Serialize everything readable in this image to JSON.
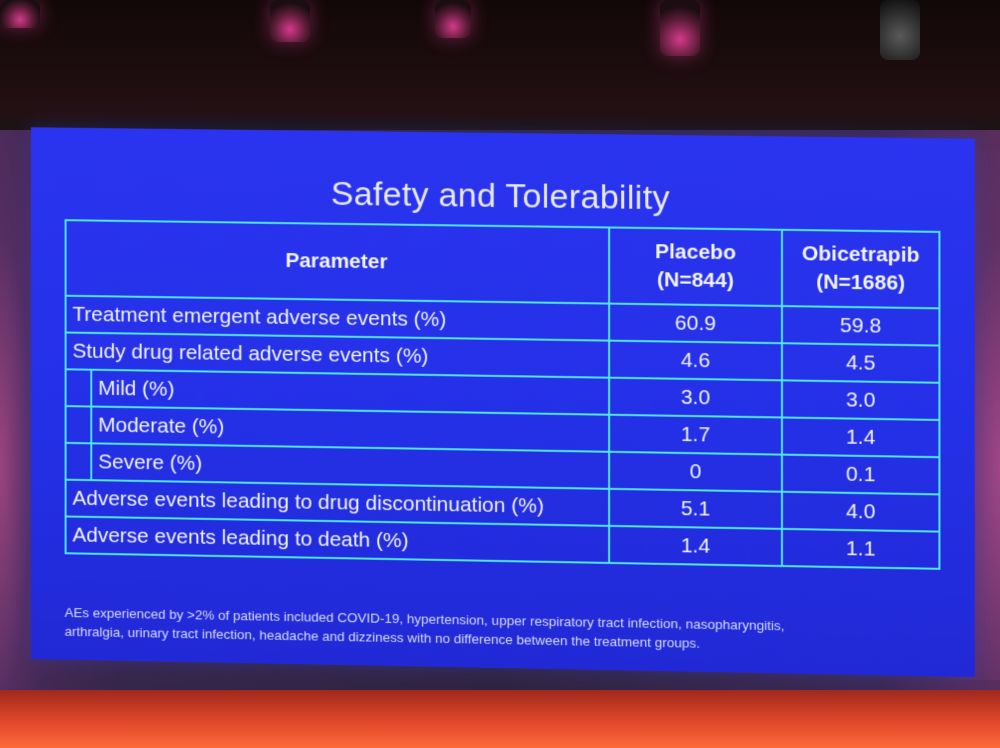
{
  "slide": {
    "title": "Safety and Tolerability",
    "table": {
      "headers": {
        "parameter": "Parameter",
        "placebo_line1": "Placebo",
        "placebo_line2": "(N=844)",
        "obicetrapib_line1": "Obicetrapib",
        "obicetrapib_line2": "(N=1686)"
      },
      "rows": [
        {
          "label": "Treatment emergent adverse events (%)",
          "placebo": "60.9",
          "obicetrapib": "59.8",
          "indent": false
        },
        {
          "label": "Study drug related adverse events (%)",
          "placebo": "4.6",
          "obicetrapib": "4.5",
          "indent": false
        },
        {
          "label": "Mild (%)",
          "placebo": "3.0",
          "obicetrapib": "3.0",
          "indent": true
        },
        {
          "label": "Moderate (%)",
          "placebo": "1.7",
          "obicetrapib": "1.4",
          "indent": true
        },
        {
          "label": "Severe (%)",
          "placebo": "0",
          "obicetrapib": "0.1",
          "indent": true
        },
        {
          "label": "Adverse events leading to drug discontinuation (%)",
          "placebo": "5.1",
          "obicetrapib": "4.0",
          "indent": false
        },
        {
          "label": "Adverse events leading to death (%)",
          "placebo": "1.4",
          "obicetrapib": "1.1",
          "indent": false
        }
      ]
    },
    "footnote_line1": "AEs experienced by >2% of patients included COVID-19, hypertension, upper respiratory tract infection, nasopharyngitis,",
    "footnote_line2": "arthralgia, urinary tract infection, headache and dizziness with no difference between the treatment groups."
  },
  "colors": {
    "slide_background": "#2430e6",
    "table_border": "#4de6ee",
    "text": "#f2f4ff"
  }
}
